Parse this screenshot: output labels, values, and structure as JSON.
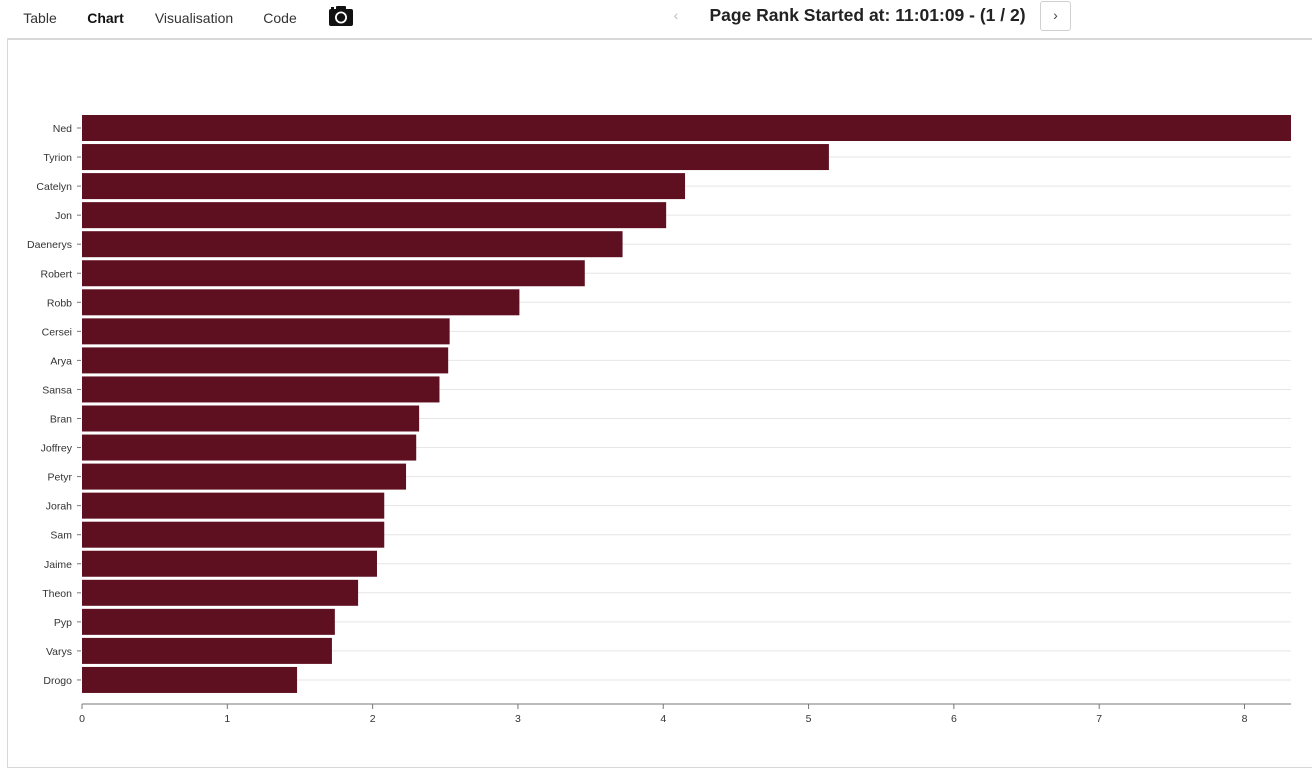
{
  "tabs": [
    {
      "label": "Table",
      "active": false
    },
    {
      "label": "Chart",
      "active": true
    },
    {
      "label": "Visualisation",
      "active": false
    },
    {
      "label": "Code",
      "active": false
    }
  ],
  "toolbar": {
    "camera_icon": "camera-icon"
  },
  "run": {
    "prev_label": "‹",
    "title": "Page Rank Started at: 11:01:09 - (1 / 2)",
    "next_label": "›"
  },
  "colors": {
    "bar": "#5e0f20",
    "grid": "#e6e6e6",
    "axis": "#777777"
  },
  "chart_data": {
    "type": "bar",
    "orientation": "horizontal",
    "categories": [
      "Ned",
      "Tyrion",
      "Catelyn",
      "Jon",
      "Daenerys",
      "Robert",
      "Robb",
      "Cersei",
      "Arya",
      "Sansa",
      "Bran",
      "Joffrey",
      "Petyr",
      "Jorah",
      "Sam",
      "Jaime",
      "Theon",
      "Pyp",
      "Varys",
      "Drogo"
    ],
    "values": [
      8.32,
      5.14,
      4.15,
      4.02,
      3.72,
      3.46,
      3.01,
      2.53,
      2.52,
      2.46,
      2.32,
      2.3,
      2.23,
      2.08,
      2.08,
      2.03,
      1.9,
      1.74,
      1.72,
      1.48
    ],
    "xlim": [
      0,
      8.32
    ],
    "xticks": [
      "0",
      "1",
      "2",
      "3",
      "4",
      "5",
      "6",
      "7",
      "8"
    ],
    "grid": true,
    "title": "",
    "xlabel": "",
    "ylabel": ""
  }
}
